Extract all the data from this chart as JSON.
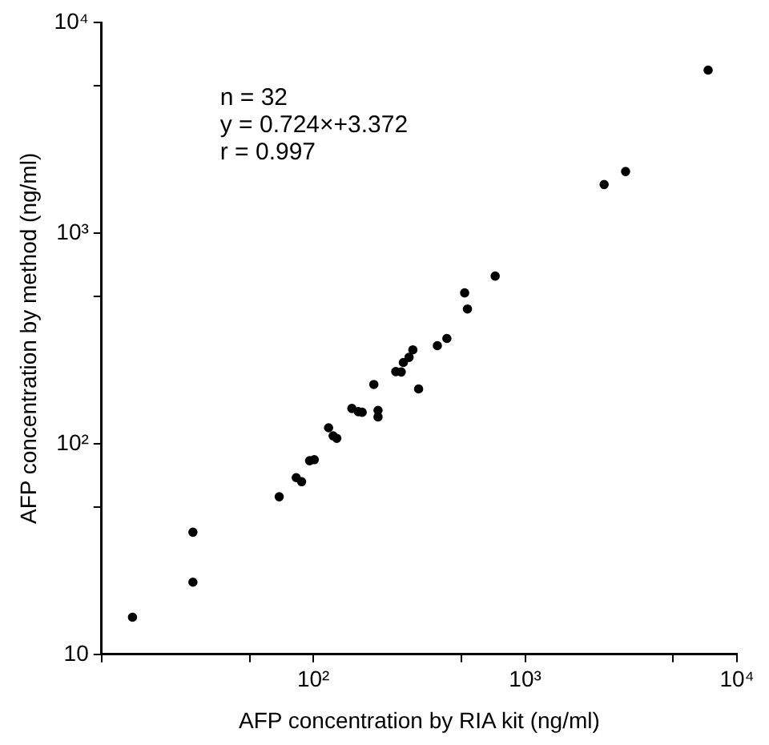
{
  "chart_data": {
    "type": "scatter",
    "xlabel": "AFP concentration by RIA kit (ng/ml)",
    "ylabel": "AFP concentration by method (ng/ml)",
    "annotations": [
      "n = 32",
      "y = 0.724×+3.372",
      "r = 0.997"
    ],
    "log": "xy",
    "grid": false,
    "legend": false,
    "marker": "circle",
    "xlim": [
      10,
      10000
    ],
    "ylim": [
      10,
      10000
    ],
    "xticks": [
      {
        "value": 10,
        "label": null
      },
      {
        "value": 50,
        "label": null
      },
      {
        "value": 100,
        "label": "10²"
      },
      {
        "value": 500,
        "label": null
      },
      {
        "value": 1000,
        "label": "10³"
      },
      {
        "value": 5000,
        "label": null
      },
      {
        "value": 10000,
        "label": "10⁴"
      }
    ],
    "yticks": [
      {
        "value": 10,
        "label": "10"
      },
      {
        "value": 50,
        "label": null
      },
      {
        "value": 100,
        "label": "10²"
      },
      {
        "value": 500,
        "label": null
      },
      {
        "value": 1000,
        "label": "10³"
      },
      {
        "value": 5000,
        "label": null
      },
      {
        "value": 10000,
        "label": "10⁴"
      }
    ],
    "series": [
      {
        "color": "#000000",
        "x": [
          14,
          27,
          27,
          69,
          83,
          88,
          96,
          101,
          118,
          124,
          129,
          152,
          163,
          170,
          193,
          202,
          202,
          245,
          260,
          266,
          283,
          295,
          314,
          385,
          427,
          518,
          534,
          722,
          2360,
          2980,
          7310
        ],
        "values": [
          15,
          38,
          22,
          56,
          69,
          66,
          83,
          84,
          119,
          109,
          106,
          147,
          142,
          141,
          191,
          144,
          134,
          220,
          219,
          243,
          257,
          279,
          182,
          292,
          316,
          520,
          436,
          625,
          1700,
          1960,
          5940
        ]
      }
    ]
  }
}
